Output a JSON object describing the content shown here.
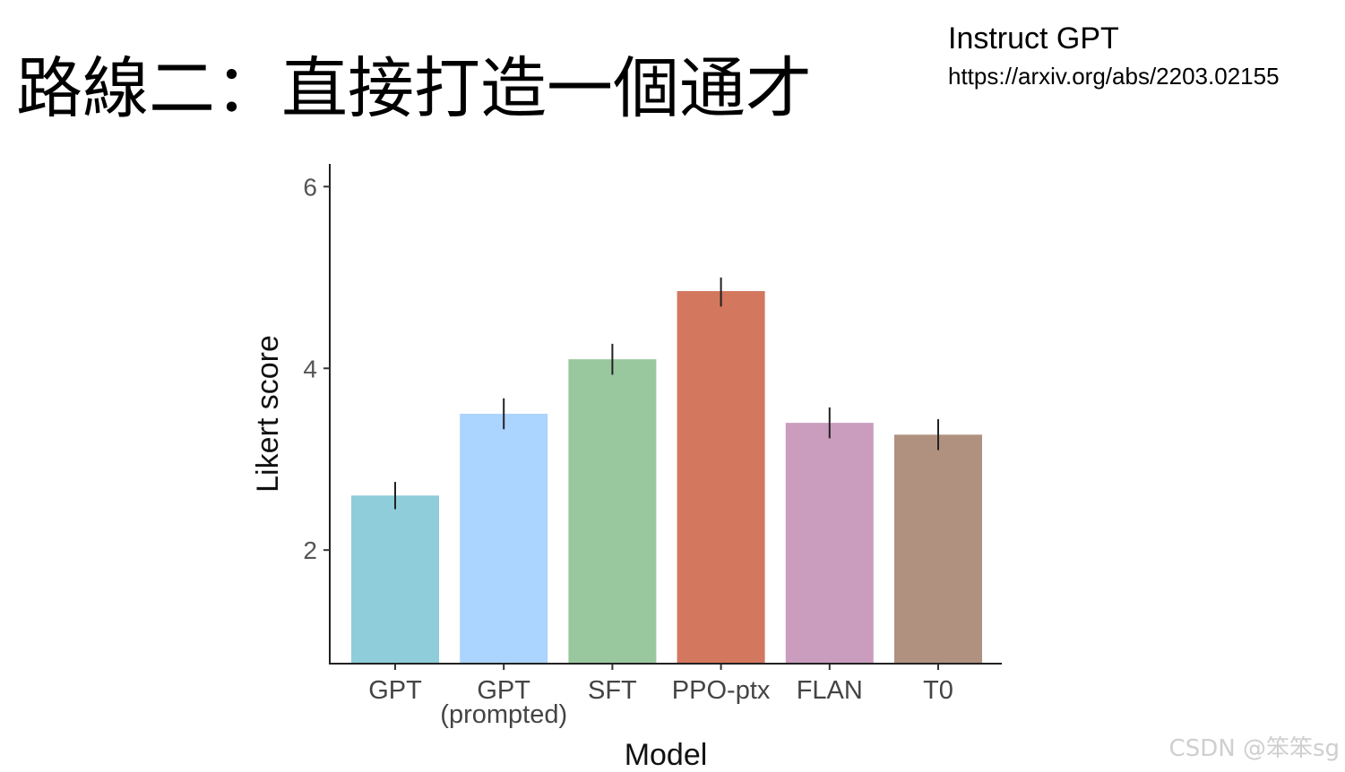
{
  "slide": {
    "title": "路線二：直接打造一個通才",
    "reference_title": "Instruct GPT",
    "reference_url": "https://arxiv.org/abs/2203.02155",
    "watermark": "CSDN @笨笨sg"
  },
  "chart_data": {
    "type": "bar",
    "categories": [
      "GPT",
      "GPT\n(prompted)",
      "SFT",
      "PPO-ptx",
      "FLAN",
      "T0"
    ],
    "values": [
      2.6,
      3.5,
      4.1,
      4.85,
      3.4,
      3.27
    ],
    "error_low": [
      2.45,
      3.33,
      3.93,
      4.68,
      3.23,
      3.1
    ],
    "error_high": [
      2.75,
      3.67,
      4.27,
      5.0,
      3.57,
      3.44
    ],
    "colors": [
      "#8ecdd9",
      "#abd4fe",
      "#99c89f",
      "#d3775f",
      "#ca9cbe",
      "#b09180"
    ],
    "xlabel": "Model",
    "ylabel": "Likert score",
    "ylim": [
      0.75,
      6.25
    ],
    "yticks": [
      2,
      4,
      6
    ],
    "grid": false
  }
}
